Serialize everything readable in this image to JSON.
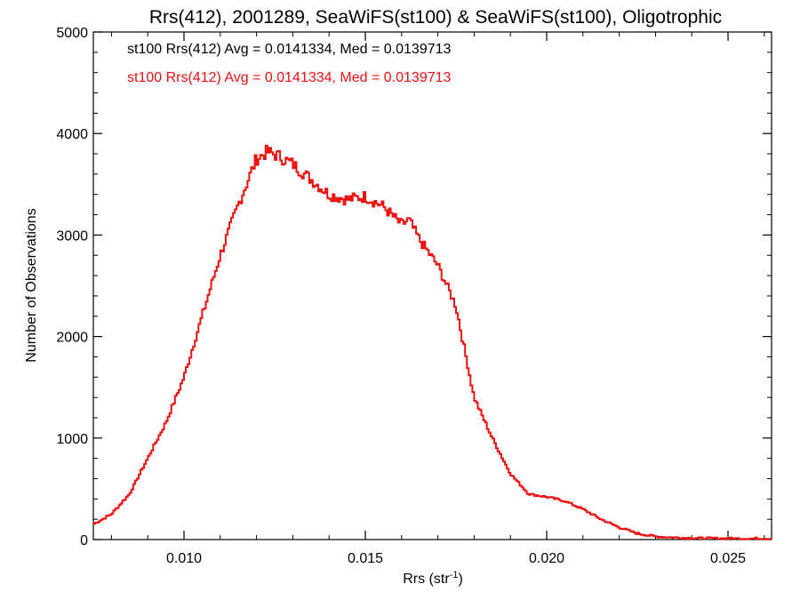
{
  "chart_data": {
    "type": "line",
    "style": "step-histogram",
    "title": "Rrs(412), 2001289, SeaWiFS(st100) & SeaWiFS(st100), Oligotrophic",
    "xlabel_main": "Rrs (str",
    "xlabel_sup": "-1",
    "xlabel_end": ")",
    "ylabel": "Number of Observations",
    "xlim": [
      0.0075,
      0.0262
    ],
    "ylim": [
      0,
      5000
    ],
    "xticks": [
      0.01,
      0.015,
      0.02,
      0.025
    ],
    "xtick_labels": [
      "0.010",
      "0.015",
      "0.020",
      "0.025"
    ],
    "yticks": [
      0,
      1000,
      2000,
      3000,
      4000,
      5000
    ],
    "ytick_labels": [
      "0",
      "1000",
      "2000",
      "3000",
      "4000",
      "5000"
    ],
    "grid": false,
    "legend_position": "top-left",
    "annotations": [
      {
        "text": "st100 Rrs(412) Avg = 0.0141334, Med = 0.0139713",
        "color": "#000000"
      },
      {
        "text": "st100 Rrs(412) Avg = 0.0141334, Med = 0.0139713",
        "color": "#ee1111"
      }
    ],
    "series": [
      {
        "color": "#ee1111",
        "x": [
          0.0075,
          0.008,
          0.0085,
          0.009,
          0.0095,
          0.01,
          0.0105,
          0.011,
          0.0115,
          0.012,
          0.0123,
          0.0126,
          0.013,
          0.0135,
          0.014,
          0.0145,
          0.015,
          0.0155,
          0.016,
          0.0162,
          0.0165,
          0.017,
          0.0175,
          0.018,
          0.0185,
          0.019,
          0.0195,
          0.02,
          0.0205,
          0.021,
          0.0215,
          0.022,
          0.0225,
          0.023,
          0.0235,
          0.024,
          0.025,
          0.0262
        ],
        "y": [
          150,
          250,
          450,
          800,
          1150,
          1600,
          2200,
          2800,
          3300,
          3750,
          3820,
          3780,
          3700,
          3550,
          3400,
          3350,
          3380,
          3280,
          3100,
          3150,
          2950,
          2700,
          2300,
          1400,
          1000,
          650,
          450,
          420,
          380,
          300,
          200,
          120,
          60,
          30,
          20,
          15,
          10,
          10
        ]
      }
    ]
  }
}
